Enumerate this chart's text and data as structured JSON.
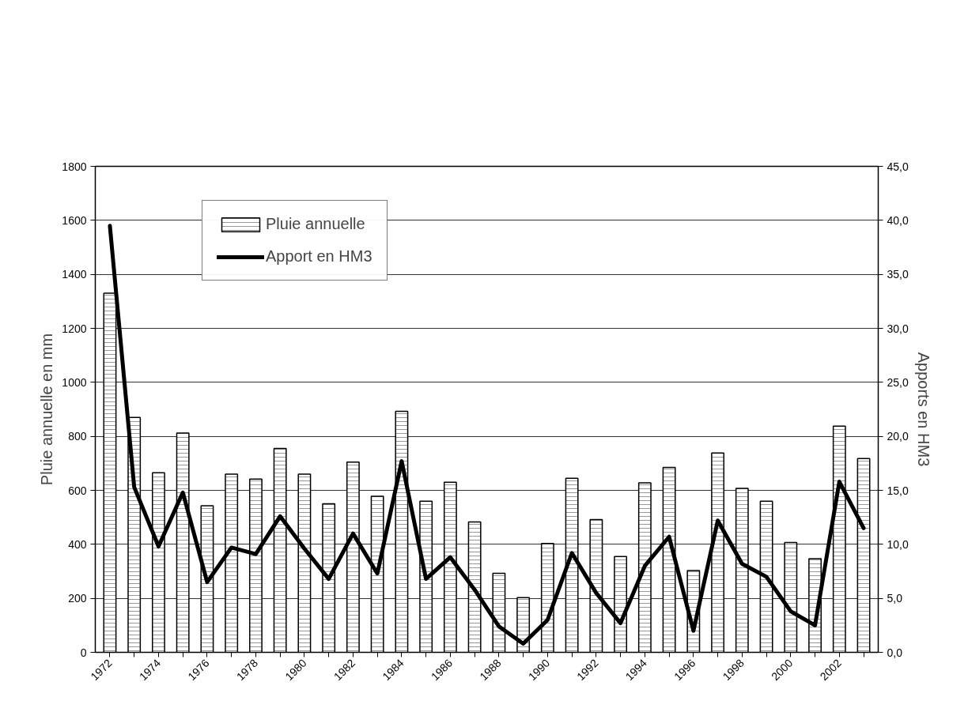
{
  "chart_data": {
    "type": "bar",
    "categories": [
      "1972",
      null,
      "1974",
      null,
      "1976",
      null,
      "1978",
      null,
      "1980",
      null,
      "1982",
      null,
      "1984",
      null,
      "1986",
      null,
      "1988",
      null,
      "1990",
      null,
      "1992",
      null,
      "1994",
      null,
      "1996",
      null,
      "1998",
      null,
      "2000",
      null,
      "2002",
      null
    ],
    "ylabel": "Pluie annuelle en mm",
    "y2label": "Apports en HM3",
    "series": [
      {
        "name": "Pluie annuelle",
        "type": "bar",
        "color": "#ffffff",
        "values": [
          1330,
          870,
          665,
          812,
          543,
          660,
          642,
          755,
          660,
          550,
          705,
          578,
          893,
          560,
          630,
          483,
          293,
          203,
          403,
          645,
          492,
          355,
          628,
          685,
          303,
          738,
          607,
          560,
          407,
          347,
          838,
          718
        ]
      },
      {
        "name": "Apport en HM3",
        "type": "line",
        "axis": "y2",
        "color": "#000000",
        "values": [
          39.5,
          15.3,
          9.8,
          14.8,
          6.5,
          9.7,
          9.1,
          12.6,
          9.6,
          6.8,
          11.0,
          7.3,
          17.7,
          6.8,
          8.8,
          5.8,
          2.4,
          0.8,
          3.0,
          9.2,
          5.5,
          2.7,
          8.0,
          10.7,
          2.0,
          12.2,
          8.2,
          7.0,
          3.8,
          2.5,
          15.8,
          11.5
        ]
      }
    ],
    "ylim": [
      0,
      1800
    ],
    "yticks": [
      0,
      200,
      400,
      600,
      800,
      1000,
      1200,
      1400,
      1600,
      1800
    ],
    "y2lim": [
      0,
      45
    ],
    "y2ticks": [
      {
        "value": 0,
        "label": "0,0"
      },
      {
        "value": 5,
        "label": "5,0"
      },
      {
        "value": 10,
        "label": "10,0"
      },
      {
        "value": 15,
        "label": "15,0"
      },
      {
        "value": 20,
        "label": "20,0"
      },
      {
        "value": 25,
        "label": "25,0"
      },
      {
        "value": 30,
        "label": "30,0"
      },
      {
        "value": 35,
        "label": "35,0"
      },
      {
        "value": 40,
        "label": "40,0"
      },
      {
        "value": 45,
        "label": "45,0"
      }
    ],
    "grid": "y",
    "legend": "top left",
    "line_style": "solid",
    "marker": "none"
  }
}
